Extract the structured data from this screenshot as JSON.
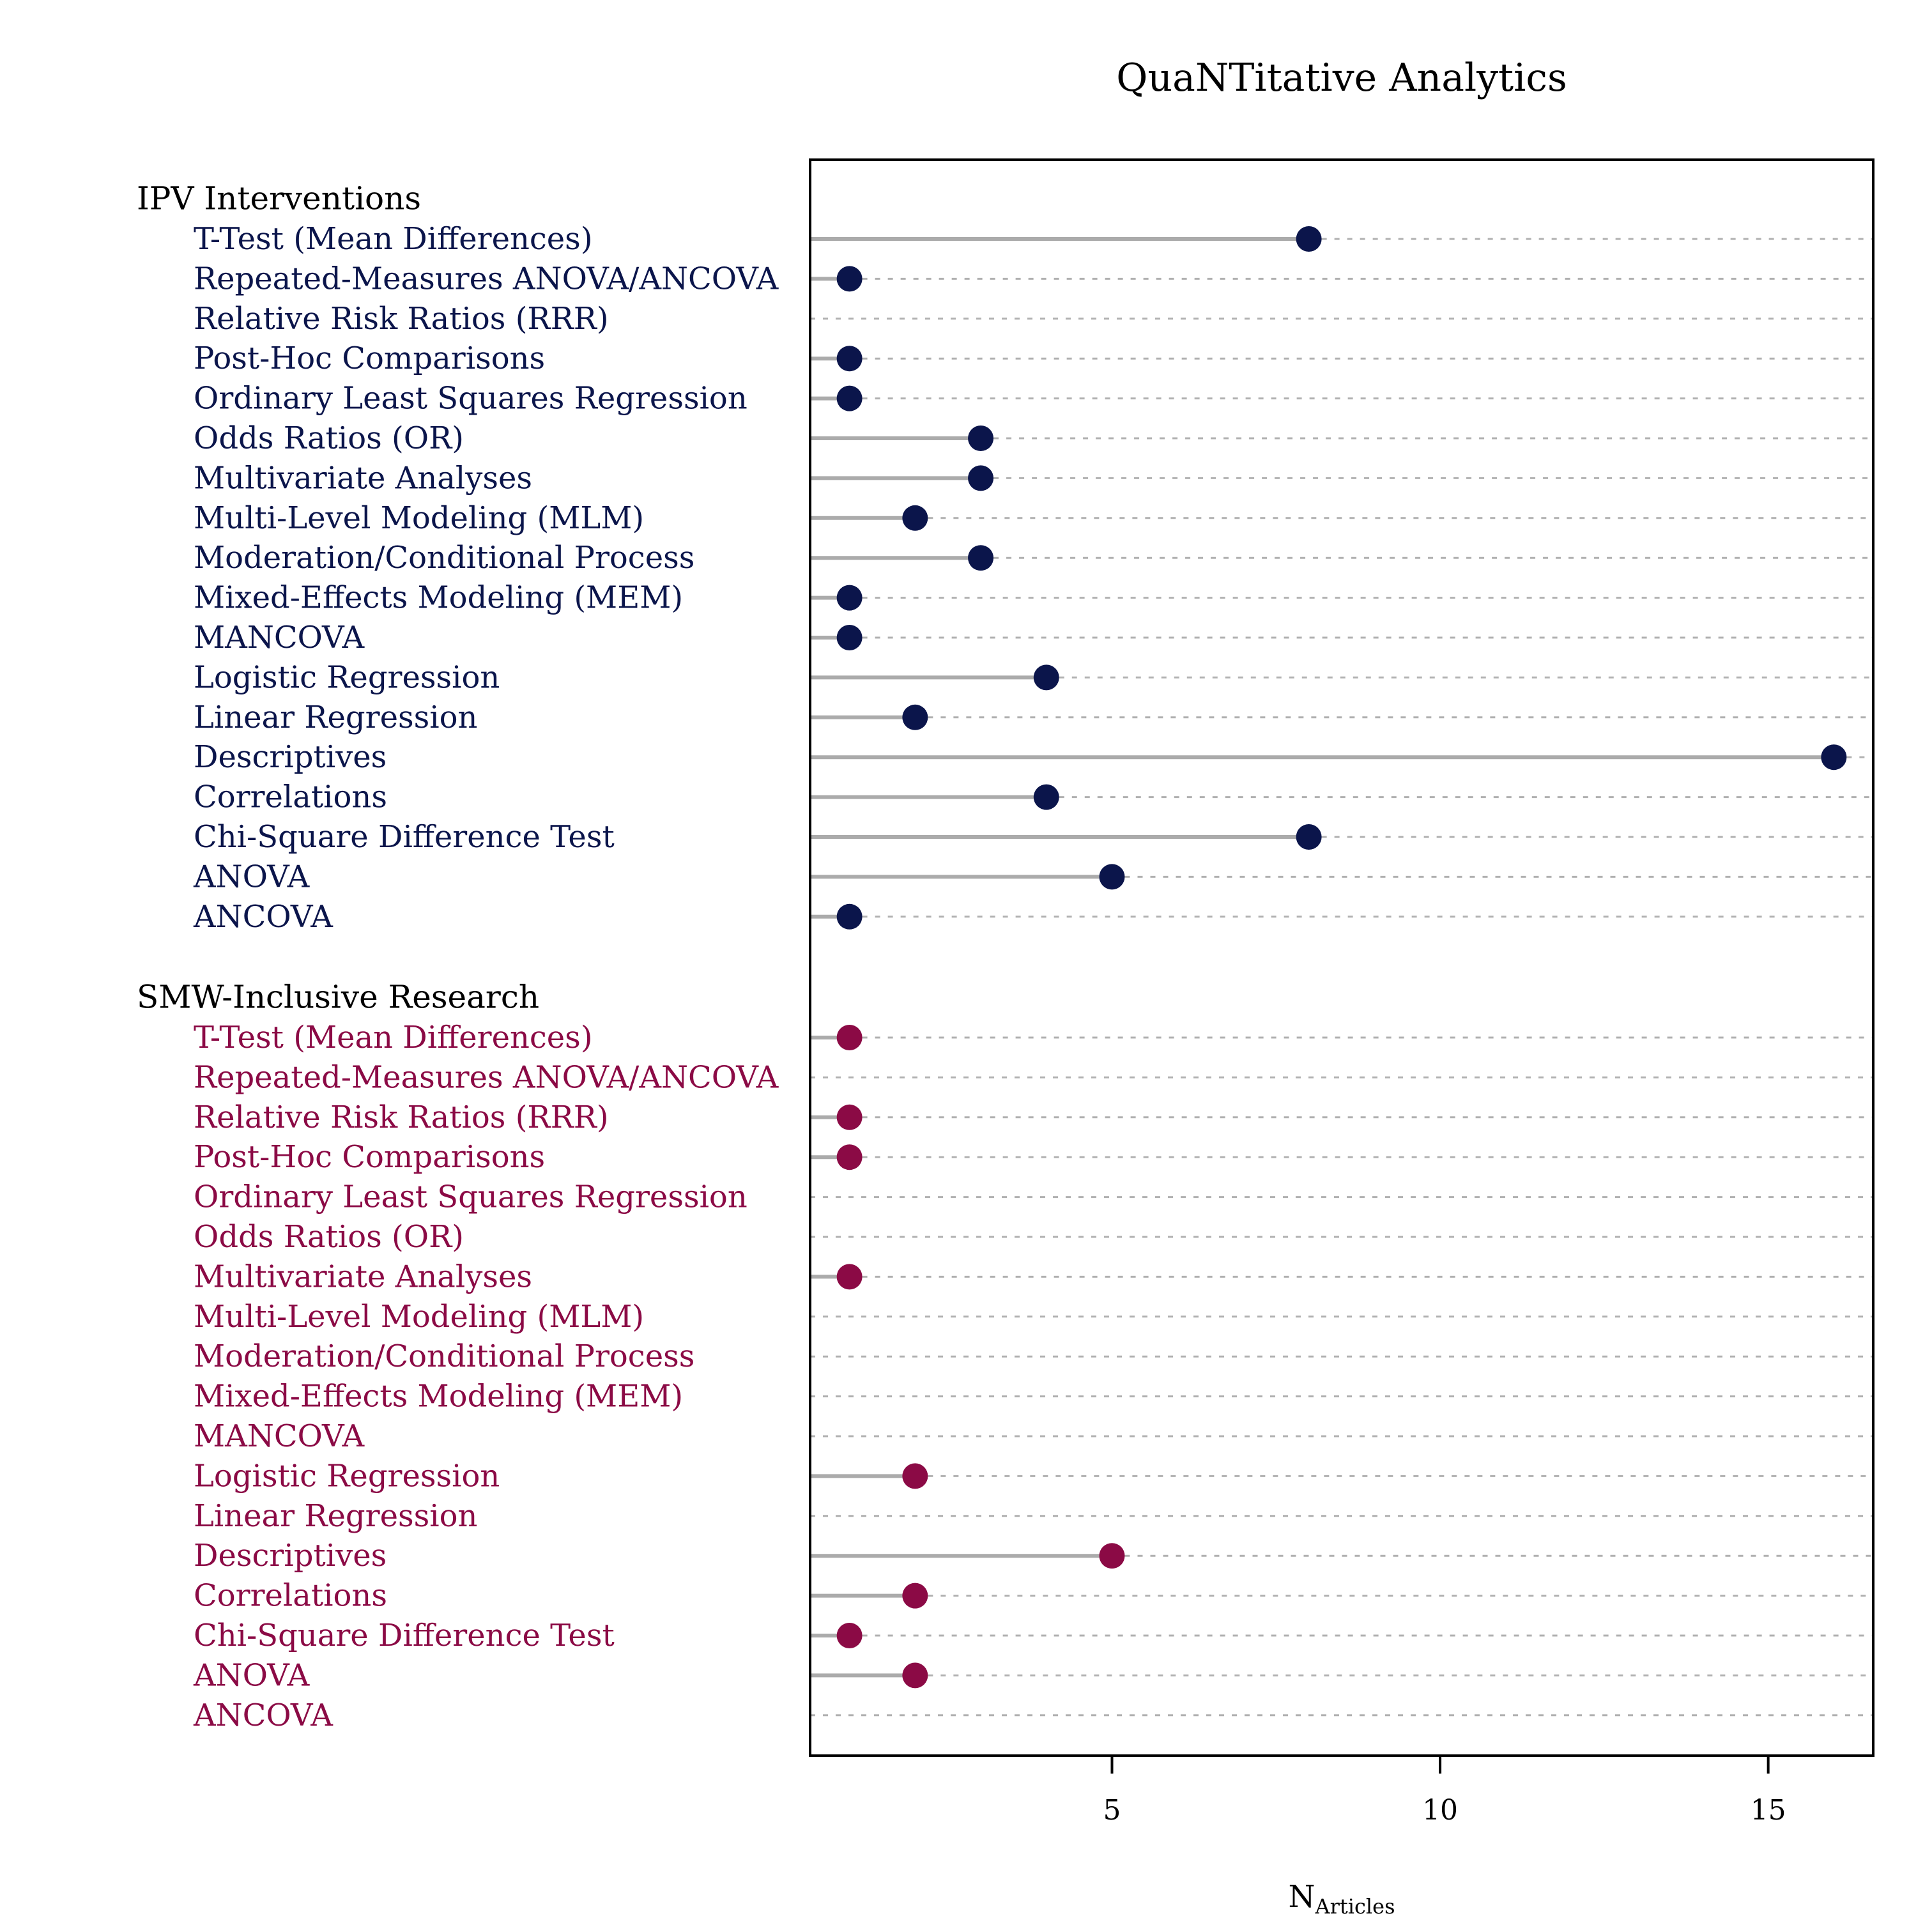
{
  "chart_data": {
    "type": "dot",
    "title": "QuaNTitative Analytics",
    "xlabel": "N",
    "xlabel_subscript": "Articles",
    "ylabel": "",
    "xlim": [
      0.4,
      16.6
    ],
    "xticks": [
      5,
      10,
      15
    ],
    "grid": "dotted horizontal reference lines",
    "colors": {
      "ipv": "#0b154b",
      "smw": "#8b0a45",
      "stem": "#ababab",
      "grid": "#b0b0b0",
      "frame": "#000000"
    },
    "categories": [
      "T-Test (Mean Differences)",
      "Repeated-Measures ANOVA/ANCOVA",
      "Relative Risk Ratios (RRR)",
      "Post-Hoc Comparisons",
      "Ordinary Least Squares Regression",
      "Odds Ratios (OR)",
      "Multivariate Analyses",
      "Multi-Level Modeling (MLM)",
      "Moderation/Conditional Process",
      "Mixed-Effects Modeling (MEM)",
      "MANCOVA",
      "Logistic Regression",
      "Linear Regression",
      "Descriptives",
      "Correlations",
      "Chi-Square Difference Test",
      "ANOVA",
      "ANCOVA"
    ],
    "groups": [
      {
        "name": "IPV Interventions",
        "color_key": "ipv",
        "values": [
          8,
          1,
          0,
          1,
          1,
          3,
          3,
          2,
          3,
          1,
          1,
          4,
          2,
          16,
          4,
          8,
          5,
          1
        ]
      },
      {
        "name": "SMW-Inclusive Research",
        "color_key": "smw",
        "values": [
          1,
          0,
          1,
          1,
          0,
          0,
          1,
          0,
          0,
          0,
          0,
          2,
          0,
          5,
          2,
          1,
          2,
          0
        ]
      }
    ]
  }
}
